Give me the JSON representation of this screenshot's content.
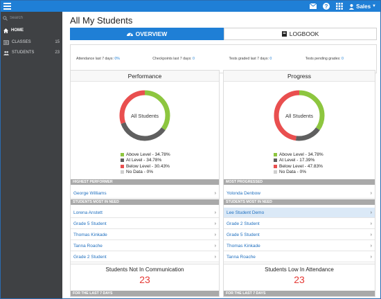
{
  "topbar": {
    "icons": [
      "hamburger-menu-icon",
      "mail-icon",
      "help-icon",
      "apps-grid-icon",
      "user-icon"
    ],
    "user_label": "Sales"
  },
  "sidebar": {
    "search_placeholder": "Search",
    "items": [
      {
        "label": "HOME",
        "icon": "home-icon",
        "count": ""
      },
      {
        "label": "CLASSES",
        "icon": "classes-icon",
        "count": "15"
      },
      {
        "label": "STUDENTS",
        "icon": "students-icon",
        "count": "23"
      }
    ]
  },
  "page": {
    "title": "All My Students",
    "tabs": [
      {
        "label": "OVERVIEW",
        "icon": "dashboard-icon",
        "active": true
      },
      {
        "label": "LOGBOOK",
        "icon": "book-icon",
        "active": false
      }
    ]
  },
  "stats": [
    {
      "label": "Attendance last 7 days:",
      "value": "0%"
    },
    {
      "label": "Checkpoints last 7 days:",
      "value": "0"
    },
    {
      "label": "Tests graded last 7 days:",
      "value": "0"
    },
    {
      "label": "Tests pending grades:",
      "value": "0"
    }
  ],
  "performance": {
    "title": "Performance",
    "donut_label": "All Students",
    "legend": [
      {
        "label": "Above Level - 34.78%",
        "color": "#8dc63f",
        "value": 34.78
      },
      {
        "label": "At Level - 34.78%",
        "color": "#5f5f5f",
        "value": 34.78
      },
      {
        "label": "Below Level - 30.43%",
        "color": "#e94f4f",
        "value": 30.43
      },
      {
        "label": "No Data - 0%",
        "color": "#cfcfcf",
        "value": 0
      }
    ],
    "highest_header": "HIGHEST PERFORMER",
    "highest": "George Williams",
    "need_header": "STUDENTS MOST IN NEED",
    "need": [
      "Lorena Anstett",
      "Grade 5 Student",
      "Thomas Kinkade",
      "Tanna Roache",
      "Grade 2 Student"
    ]
  },
  "progress": {
    "title": "Progress",
    "donut_label": "All Students",
    "legend": [
      {
        "label": "Above Level - 34.78%",
        "color": "#8dc63f",
        "value": 34.78
      },
      {
        "label": "At Level - 17.39%",
        "color": "#5f5f5f",
        "value": 17.39
      },
      {
        "label": "Below Level - 47.83%",
        "color": "#e94f4f",
        "value": 47.83
      },
      {
        "label": "No Data - 0%",
        "color": "#cfcfcf",
        "value": 0
      }
    ],
    "progressed_header": "MOST PROGRESSED",
    "progressed": "Yolonda Denbow",
    "need_header": "STUDENTS MOST IN NEED",
    "need": [
      "Lee Student Demo",
      "Grade 2 Student",
      "Grade 5 Student",
      "Thomas Kinkade",
      "Tanna Roache"
    ]
  },
  "not_in_communication": {
    "title": "Students Not In Communication",
    "value": "23",
    "footer": "FOR THE LAST 7 DAYS"
  },
  "low_attendance": {
    "title": "Students Low In Attendance",
    "value": "23",
    "footer": "FOR THE LAST 7 DAYS"
  },
  "colors": {
    "accent": "#1f7fd6",
    "sidebar": "#3f4144",
    "alert": "#e53935"
  }
}
